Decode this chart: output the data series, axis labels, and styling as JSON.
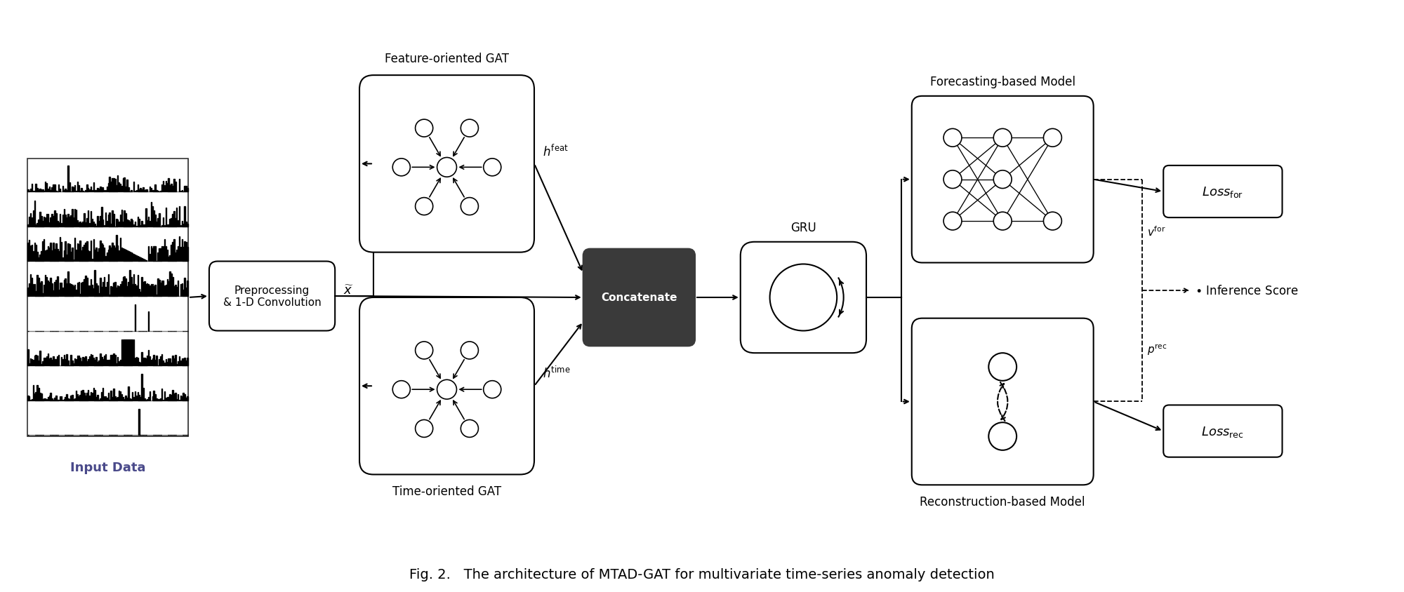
{
  "bg_color": "#ffffff",
  "fig_caption": "Fig. 2.   The architecture of MTAD-GAT for multivariate time-series anomaly detection",
  "caption_fontsize": 14,
  "title_color": "#000000",
  "label_color": "#4a4a8a",
  "input_data_label": "Input Data",
  "preprocessing_label": "Preprocessing\n& 1-D Convolution",
  "feature_gat_label": "Feature-oriented GAT",
  "time_gat_label": "Time-oriented GAT",
  "concatenate_label": "Concatenate",
  "gru_label": "GRU",
  "forecasting_label": "Forecasting-based Model",
  "reconstruction_label": "Reconstruction-based Model",
  "inference_label": "Inference Score"
}
